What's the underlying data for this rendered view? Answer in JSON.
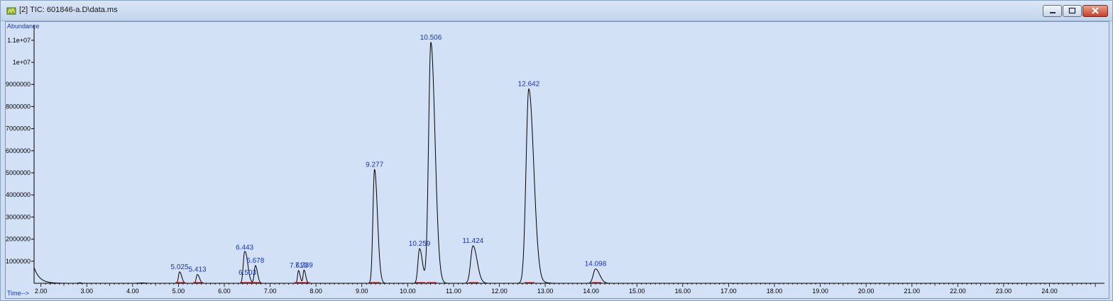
{
  "window": {
    "title": "[2] TIC: 601846-a.D\\data.ms",
    "icon": "chromatogram-icon",
    "controls": [
      "minimize-icon",
      "maximize-icon",
      "close-icon"
    ]
  },
  "chart_data": {
    "type": "line",
    "ylabel": "Abundance",
    "xlabel": "Time-->",
    "xlim": [
      1.85,
      25.2
    ],
    "ylim": [
      0,
      11700000
    ],
    "y_ticks": [
      {
        "value": 1000000,
        "label": "1000000"
      },
      {
        "value": 2000000,
        "label": "2000000"
      },
      {
        "value": 3000000,
        "label": "3000000"
      },
      {
        "value": 4000000,
        "label": "4000000"
      },
      {
        "value": 5000000,
        "label": "5000000"
      },
      {
        "value": 6000000,
        "label": "6000000"
      },
      {
        "value": 7000000,
        "label": "7000000"
      },
      {
        "value": 8000000,
        "label": "8000000"
      },
      {
        "value": 9000000,
        "label": "9000000"
      },
      {
        "value": 10000000,
        "label": "1e+07"
      },
      {
        "value": 11000000,
        "label": "1.1e+07"
      }
    ],
    "x_ticks": [
      {
        "value": 2.0,
        "label": "2.00"
      },
      {
        "value": 3.0,
        "label": "3.00"
      },
      {
        "value": 4.0,
        "label": "4.00"
      },
      {
        "value": 5.0,
        "label": "5.00"
      },
      {
        "value": 6.0,
        "label": "6.00"
      },
      {
        "value": 7.0,
        "label": "7.00"
      },
      {
        "value": 8.0,
        "label": "8.00"
      },
      {
        "value": 9.0,
        "label": "9.00"
      },
      {
        "value": 10.0,
        "label": "10.00"
      },
      {
        "value": 11.0,
        "label": "11.00"
      },
      {
        "value": 12.0,
        "label": "12.00"
      },
      {
        "value": 13.0,
        "label": "13.00"
      },
      {
        "value": 14.0,
        "label": "14.00"
      },
      {
        "value": 15.0,
        "label": "15.00"
      },
      {
        "value": 16.0,
        "label": "16.00"
      },
      {
        "value": 17.0,
        "label": "17.00"
      },
      {
        "value": 18.0,
        "label": "18.00"
      },
      {
        "value": 19.0,
        "label": "19.00"
      },
      {
        "value": 20.0,
        "label": "20.00"
      },
      {
        "value": 21.0,
        "label": "21.00"
      },
      {
        "value": 22.0,
        "label": "22.00"
      },
      {
        "value": 23.0,
        "label": "23.00"
      },
      {
        "value": 24.0,
        "label": "24.00"
      }
    ],
    "peaks": [
      {
        "label": "5.025",
        "rt": 5.025,
        "height": 520000,
        "width": 0.025
      },
      {
        "label": "5.413",
        "rt": 5.413,
        "height": 400000,
        "width": 0.025
      },
      {
        "label": "6.443",
        "rt": 6.443,
        "height": 1400000,
        "width": 0.03
      },
      {
        "label": "6.503",
        "rt": 6.503,
        "height": 260000,
        "width": 0.03
      },
      {
        "label": "6.678",
        "rt": 6.678,
        "height": 800000,
        "width": 0.025
      },
      {
        "label": "7.618",
        "rt": 7.618,
        "height": 580000,
        "width": 0.02
      },
      {
        "label": "7.739",
        "rt": 7.739,
        "height": 600000,
        "width": 0.02
      },
      {
        "label": "9.277",
        "rt": 9.277,
        "height": 5150000,
        "width": 0.035
      },
      {
        "label": "10.259",
        "rt": 10.259,
        "height": 1570000,
        "width": 0.035
      },
      {
        "label": "10.506",
        "rt": 10.506,
        "height": 10900000,
        "width": 0.05
      },
      {
        "label": "11.424",
        "rt": 11.424,
        "height": 1700000,
        "width": 0.05
      },
      {
        "label": "12.642",
        "rt": 12.642,
        "height": 8800000,
        "width": 0.06
      },
      {
        "label": "14.098",
        "rt": 14.098,
        "height": 650000,
        "width": 0.05
      }
    ],
    "series_color": "#000000",
    "label_color": "#1836b5",
    "baseline_mark_color": "#d01010"
  }
}
